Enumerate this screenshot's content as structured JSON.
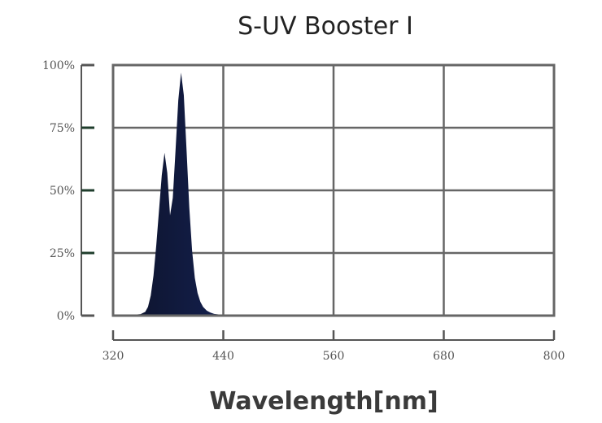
{
  "chart_data": {
    "type": "area",
    "title": "S-UV Booster I",
    "xlabel": "Wavelength[nm]",
    "ylabel": "",
    "xlim": [
      320,
      800
    ],
    "ylim": [
      0,
      100
    ],
    "x_ticks": [
      "320",
      "440",
      "560",
      "680",
      "800"
    ],
    "y_ticks": [
      "0%",
      "25%",
      "50%",
      "75%",
      "100%"
    ],
    "grid": true,
    "colors": {
      "grid": "#666666",
      "axis": "#555555",
      "fill_dark": "#0c1228",
      "fill_mid": "#1a2a6a",
      "fill_light": "#2d6fd0",
      "ytick_mark": "#1f3d2c"
    },
    "series": [
      {
        "x": [
          320,
          340,
          350,
          355,
          358,
          361,
          364,
          367,
          370,
          373,
          376,
          379,
          382,
          385,
          388,
          391,
          394,
          397,
          400,
          403,
          406,
          409,
          412,
          415,
          418,
          422,
          426,
          430,
          440,
          500,
          560,
          620,
          680,
          740,
          800
        ],
        "values": [
          0,
          0.3,
          0.6,
          1.5,
          3.5,
          8,
          16,
          28,
          42,
          56,
          65,
          57,
          40,
          47,
          66,
          86,
          97,
          88,
          66,
          43,
          26,
          15,
          9,
          5.5,
          3.5,
          2,
          1.2,
          0.7,
          0.3,
          0.2,
          0.2,
          0.3,
          0.2,
          0.2,
          0.2
        ]
      }
    ]
  }
}
